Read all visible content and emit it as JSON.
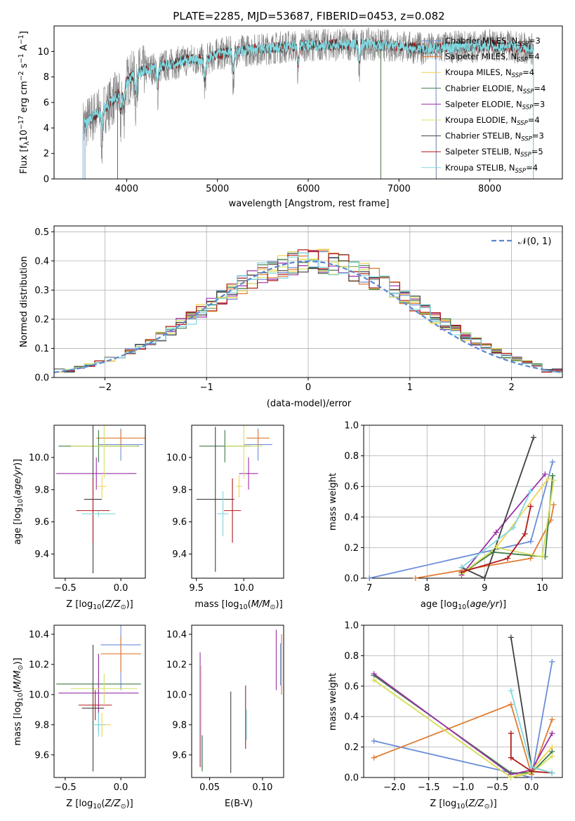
{
  "figure": {
    "title": "PLATE=2285, MJD=53687, FIBERID=0453, z=0.082",
    "colors": {
      "Chabrier MILES": "#6a8ed8",
      "Salpeter MILES": "#e07b30",
      "Kroupa MILES": "#f2d44a",
      "Chabrier ELODIE": "#3c7a45",
      "Salpeter ELODIE": "#9b30a8",
      "Kroupa ELODIE": "#d4e060",
      "Chabrier STELIB": "#404040",
      "Salpeter STELIB": "#b01818",
      "Kroupa STELIB": "#80d8e0",
      "data": "#808080"
    }
  },
  "chart_data": [
    {
      "id": "spectrum",
      "type": "line",
      "xlabel": "wavelength [Angstrom, rest frame]",
      "ylabel": "Flux [f_λ10^-17 erg cm^-2 s^-1 A^-1]",
      "xlim": [
        3200,
        8800
      ],
      "ylim": [
        0,
        12
      ],
      "xticks": [
        4000,
        5000,
        6000,
        7000,
        8000
      ],
      "yticks": [
        0,
        2,
        4,
        6,
        8,
        10
      ],
      "legend_position": "right",
      "legend": [
        {
          "name": "Chabrier MILES",
          "nssp": "3",
          "color": "#6a8ed8"
        },
        {
          "name": "Salpeter MILES",
          "nssp": "4",
          "color": "#e07b30"
        },
        {
          "name": "Kroupa MILES",
          "nssp": "4",
          "color": "#f2d44a"
        },
        {
          "name": "Chabrier ELODIE",
          "nssp": "4",
          "color": "#3c7a45"
        },
        {
          "name": "Salpeter ELODIE",
          "nssp": "3",
          "color": "#9b30a8"
        },
        {
          "name": "Kroupa ELODIE",
          "nssp": "4",
          "color": "#d4e060"
        },
        {
          "name": "Chabrier STELIB",
          "nssp": "3",
          "color": "#404040"
        },
        {
          "name": "Salpeter STELIB",
          "nssp": "5",
          "color": "#b01818"
        },
        {
          "name": "Kroupa STELIB",
          "nssp": "4",
          "color": "#80d8e0"
        }
      ],
      "data_range": [
        3520,
        8480
      ],
      "continuum": [
        [
          3520,
          4.2
        ],
        [
          3650,
          5.0
        ],
        [
          3800,
          5.8
        ],
        [
          3950,
          7.0
        ],
        [
          4000,
          7.6
        ],
        [
          4100,
          8.3
        ],
        [
          4300,
          8.7
        ],
        [
          4500,
          9.0
        ],
        [
          4700,
          9.4
        ],
        [
          4860,
          9.3
        ],
        [
          5000,
          9.8
        ],
        [
          5200,
          10.0
        ],
        [
          5500,
          10.2
        ],
        [
          5800,
          10.4
        ],
        [
          6000,
          10.5
        ],
        [
          6300,
          10.5
        ],
        [
          6563,
          10.6
        ],
        [
          6800,
          10.5
        ],
        [
          7000,
          10.4
        ],
        [
          7300,
          10.2
        ],
        [
          7500,
          10.3
        ],
        [
          7800,
          10.4
        ],
        [
          8000,
          10.5
        ],
        [
          8200,
          10.4
        ],
        [
          8480,
          10.2
        ]
      ],
      "model_ranges": {
        "MILES": [
          3540,
          7410
        ],
        "ELODIE": [
          3900,
          6800
        ],
        "STELIB": [
          3520,
          8480
        ]
      }
    },
    {
      "id": "residuals",
      "type": "line",
      "xlabel": "(data-model)/error",
      "ylabel": "Normed distribution",
      "xlim": [
        -2.5,
        2.5
      ],
      "ylim": [
        0,
        0.52
      ],
      "xticks": [
        -2,
        -1,
        0,
        1,
        2
      ],
      "yticks": [
        0.0,
        0.1,
        0.2,
        0.3,
        0.4,
        0.5
      ],
      "legend": "𝒩(0, 1)",
      "legend_position": "top-right",
      "grid": true,
      "bin_width": 0.1
    },
    {
      "id": "age-z",
      "type": "scatter",
      "xlabel": "Z [log10(Z/Z⊙)]",
      "ylabel": "age [log10(age/yr)]",
      "xlim": [
        -0.6,
        0.22
      ],
      "ylim": [
        9.25,
        10.2
      ],
      "xticks": [
        -0.5,
        0.0
      ],
      "yticks": [
        9.4,
        9.6,
        9.8,
        10.0
      ],
      "points": [
        {
          "x": 0.0,
          "y": 10.08,
          "xerr": 0.2,
          "yerr": 0.1,
          "c": "Chabrier MILES"
        },
        {
          "x": 0.0,
          "y": 10.12,
          "xerr": 0.22,
          "yerr": 0.05,
          "c": "Salpeter MILES"
        },
        {
          "x": -0.17,
          "y": 9.82,
          "xerr": 0.04,
          "yerr": 0.07,
          "c": "Kroupa MILES"
        },
        {
          "x": -0.2,
          "y": 10.07,
          "xerr": 0.36,
          "yerr": 0.1,
          "c": "Chabrier ELODIE"
        },
        {
          "x": -0.22,
          "y": 9.9,
          "xerr": 0.36,
          "yerr": 0.1,
          "c": "Salpeter ELODIE"
        },
        {
          "x": -0.15,
          "y": 10.07,
          "xerr": 0.3,
          "yerr": 0.2,
          "c": "Kroupa ELODIE"
        },
        {
          "x": -0.25,
          "y": 9.74,
          "xerr": 0.08,
          "yerr": 0.46,
          "c": "Chabrier STELIB"
        },
        {
          "x": -0.25,
          "y": 9.67,
          "xerr": 0.15,
          "yerr": 0.2,
          "c": "Salpeter STELIB"
        },
        {
          "x": -0.2,
          "y": 9.65,
          "xerr": 0.15,
          "yerr": 0.02,
          "c": "Kroupa STELIB"
        }
      ]
    },
    {
      "id": "age-mass",
      "type": "scatter",
      "xlabel": "mass [log10(M/M⊙)]",
      "ylabel": "",
      "xlim": [
        9.45,
        10.42
      ],
      "ylim": [
        9.25,
        10.2
      ],
      "xticks": [
        9.5,
        10.0
      ],
      "yticks": [
        9.4,
        9.6,
        9.8,
        10.0
      ],
      "points": [
        {
          "x": 10.15,
          "y": 10.08,
          "xerr": 0.15,
          "yerr": 0.1,
          "c": "Chabrier MILES"
        },
        {
          "x": 10.15,
          "y": 10.12,
          "xerr": 0.12,
          "yerr": 0.05,
          "c": "Salpeter MILES"
        },
        {
          "x": 9.95,
          "y": 9.82,
          "xerr": 0.03,
          "yerr": 0.07,
          "c": "Kroupa MILES"
        },
        {
          "x": 9.8,
          "y": 10.07,
          "xerr": 0.27,
          "yerr": 0.1,
          "c": "Chabrier ELODIE"
        },
        {
          "x": 10.05,
          "y": 9.9,
          "xerr": 0.1,
          "yerr": 0.1,
          "c": "Salpeter ELODIE"
        },
        {
          "x": 10.0,
          "y": 10.07,
          "xerr": 0.2,
          "yerr": 0.2,
          "c": "Kroupa ELODIE"
        },
        {
          "x": 9.7,
          "y": 9.74,
          "xerr": 0.2,
          "yerr": 0.45,
          "c": "Chabrier STELIB"
        },
        {
          "x": 9.88,
          "y": 9.67,
          "xerr": 0.09,
          "yerr": 0.2,
          "c": "Salpeter STELIB"
        },
        {
          "x": 9.78,
          "y": 9.65,
          "xerr": 0.06,
          "yerr": 0.14,
          "c": "Kroupa STELIB"
        }
      ]
    },
    {
      "id": "mw-age",
      "type": "line",
      "xlabel": "age [log10(age/yr)]",
      "ylabel": "mass weight",
      "xlim": [
        6.9,
        10.35
      ],
      "ylim": [
        0,
        1.0
      ],
      "xticks": [
        7,
        8,
        9,
        10
      ],
      "yticks": [
        0.0,
        0.2,
        0.4,
        0.6,
        0.8,
        1.0
      ],
      "grid": true,
      "series": [
        {
          "c": "Chabrier MILES",
          "x": [
            7.0,
            9.8,
            10.18
          ],
          "y": [
            0.0,
            0.24,
            0.76
          ]
        },
        {
          "c": "Salpeter MILES",
          "x": [
            7.8,
            9.8,
            10.15,
            10.2
          ],
          "y": [
            0.0,
            0.13,
            0.38,
            0.48
          ]
        },
        {
          "c": "Kroupa MILES",
          "x": [
            8.6,
            9.2,
            10.1
          ],
          "y": [
            0.02,
            0.2,
            0.65
          ]
        },
        {
          "c": "Chabrier ELODIE",
          "x": [
            8.6,
            9.15,
            10.05,
            10.18
          ],
          "y": [
            0.03,
            0.17,
            0.14,
            0.67
          ]
        },
        {
          "c": "Salpeter ELODIE",
          "x": [
            8.6,
            9.2,
            10.05
          ],
          "y": [
            0.02,
            0.3,
            0.68
          ]
        },
        {
          "c": "Kroupa ELODIE",
          "x": [
            8.6,
            9.2,
            10.0,
            10.2
          ],
          "y": [
            0.03,
            0.2,
            0.14,
            0.64
          ]
        },
        {
          "c": "Chabrier STELIB",
          "x": [
            8.6,
            9.0,
            9.85
          ],
          "y": [
            0.07,
            0.0,
            0.92
          ]
        },
        {
          "c": "Salpeter STELIB",
          "x": [
            8.6,
            9.4,
            9.7,
            9.8
          ],
          "y": [
            0.04,
            0.13,
            0.29,
            0.47
          ]
        },
        {
          "c": "Kroupa STELIB",
          "x": [
            8.6,
            9.5,
            9.8
          ],
          "y": [
            0.07,
            0.33,
            0.57
          ]
        }
      ]
    },
    {
      "id": "mass-z",
      "type": "scatter",
      "xlabel": "Z [log10(Z/Z⊙)]",
      "ylabel": "mass [log10(M/M⊙)]",
      "xlim": [
        -0.6,
        0.22
      ],
      "ylim": [
        9.45,
        10.46
      ],
      "xticks": [
        -0.5,
        0.0
      ],
      "yticks": [
        9.6,
        9.8,
        10.0,
        10.2,
        10.4
      ],
      "points": [
        {
          "x": 0.0,
          "y": 10.33,
          "xerr": 0.18,
          "yerr": 0.3,
          "c": "Chabrier MILES"
        },
        {
          "x": 0.0,
          "y": 10.27,
          "xerr": 0.18,
          "yerr": 0.12,
          "c": "Salpeter MILES"
        },
        {
          "x": -0.17,
          "y": 9.8,
          "xerr": 0.08,
          "yerr": 0.08,
          "c": "Kroupa MILES"
        },
        {
          "x": -0.2,
          "y": 10.07,
          "xerr": 0.38,
          "yerr": 0.2,
          "c": "Chabrier ELODIE"
        },
        {
          "x": -0.2,
          "y": 10.01,
          "xerr": 0.36,
          "yerr": 0.26,
          "c": "Salpeter ELODIE"
        },
        {
          "x": -0.15,
          "y": 10.04,
          "xerr": 0.3,
          "yerr": 0.1,
          "c": "Kroupa ELODIE"
        },
        {
          "x": -0.25,
          "y": 9.91,
          "xerr": 0.1,
          "yerr": 0.42,
          "c": "Chabrier STELIB"
        },
        {
          "x": -0.23,
          "y": 9.93,
          "xerr": 0.15,
          "yerr": 0.1,
          "c": "Salpeter STELIB"
        },
        {
          "x": -0.2,
          "y": 9.8,
          "xerr": 0.06,
          "yerr": 0.08,
          "c": "Kroupa STELIB"
        }
      ]
    },
    {
      "id": "mass-ebv",
      "type": "scatter",
      "xlabel": "E(B-V)",
      "ylabel": "",
      "xlim": [
        0.033,
        0.12
      ],
      "ylim": [
        9.45,
        10.46
      ],
      "xticks": [
        0.05,
        0.1
      ],
      "yticks": [
        9.6,
        9.8,
        10.0,
        10.2,
        10.4
      ],
      "points": [
        {
          "x": 0.118,
          "y": 10.2,
          "yerr": 0.2,
          "c": "Salpeter MILES"
        },
        {
          "x": 0.117,
          "y": 10.2,
          "yerr": 0.14,
          "c": "Chabrier MILES"
        },
        {
          "x": 0.113,
          "y": 10.23,
          "yerr": 0.2,
          "c": "Salpeter ELODIE"
        },
        {
          "x": 0.041,
          "y": 9.9,
          "yerr": 0.38,
          "c": "Salpeter ELODIE"
        },
        {
          "x": 0.042,
          "y": 9.85,
          "yerr": 0.34,
          "c": "Kroupa ELODIE"
        },
        {
          "x": 0.043,
          "y": 9.61,
          "yerr": 0.12,
          "c": "Chabrier ELODIE"
        },
        {
          "x": 0.07,
          "y": 9.75,
          "yerr": 0.27,
          "c": "Chabrier STELIB"
        },
        {
          "x": 0.084,
          "y": 9.85,
          "yerr": 0.21,
          "c": "Salpeter STELIB"
        },
        {
          "x": 0.085,
          "y": 9.8,
          "yerr": 0.1,
          "c": "Kroupa STELIB"
        }
      ]
    },
    {
      "id": "mw-z",
      "type": "line",
      "xlabel": "Z [log10(Z/Z⊙)]",
      "ylabel": "mass weight",
      "xlim": [
        -2.45,
        0.45
      ],
      "ylim": [
        0,
        1.0
      ],
      "xticks": [
        -2.0,
        -1.5,
        -1.0,
        -0.5,
        0.0
      ],
      "yticks": [
        0.0,
        0.2,
        0.4,
        0.6,
        0.8,
        1.0
      ],
      "grid": true,
      "series": [
        {
          "c": "Chabrier MILES",
          "x": [
            -2.3,
            0.0,
            0.3
          ],
          "y": [
            0.24,
            0.0,
            0.76
          ]
        },
        {
          "c": "Salpeter MILES",
          "x": [
            -2.3,
            -0.3,
            0.0,
            0.3
          ],
          "y": [
            0.13,
            0.48,
            0.02,
            0.38
          ]
        },
        {
          "c": "Kroupa MILES",
          "x": [
            -2.3,
            -0.3,
            0.0,
            0.3
          ],
          "y": [
            0.64,
            0.0,
            0.05,
            0.2
          ]
        },
        {
          "c": "Chabrier ELODIE",
          "x": [
            -2.3,
            -0.3,
            0.0,
            0.3
          ],
          "y": [
            0.67,
            0.03,
            0.03,
            0.17
          ]
        },
        {
          "c": "Salpeter ELODIE",
          "x": [
            -2.3,
            -0.3,
            0.0,
            0.3
          ],
          "y": [
            0.68,
            0.02,
            0.05,
            0.29
          ]
        },
        {
          "c": "Kroupa ELODIE",
          "x": [
            -2.3,
            -0.3,
            0.0,
            0.3
          ],
          "y": [
            0.64,
            0.0,
            0.03,
            0.14
          ]
        },
        {
          "c": "Chabrier STELIB",
          "x": [
            -0.3,
            0.0,
            0.3
          ],
          "y": [
            0.92,
            0.07,
            0.03
          ]
        },
        {
          "c": "Salpeter STELIB",
          "x": [
            -0.3,
            -0.3,
            0.0,
            0.3
          ],
          "y": [
            0.29,
            0.13,
            0.04,
            0.03
          ]
        },
        {
          "c": "Kroupa STELIB",
          "x": [
            -0.3,
            0.0,
            0.3
          ],
          "y": [
            0.57,
            0.07,
            0.03
          ]
        }
      ]
    }
  ]
}
